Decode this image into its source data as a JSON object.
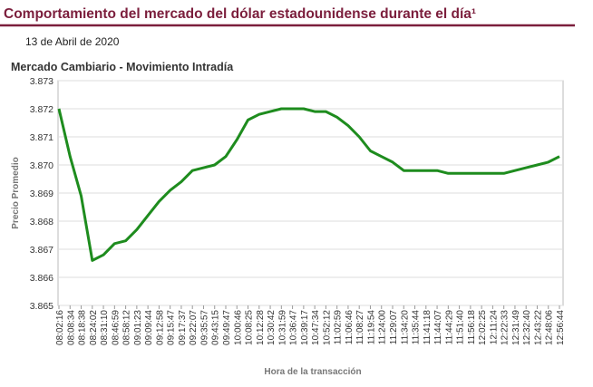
{
  "header": {
    "title": "Comportamiento del mercado del dólar estadounidense durante el día¹",
    "date": "13 de Abril de 2020"
  },
  "chart_data": {
    "type": "line",
    "title": "Mercado Cambiario - Movimiento Intradía",
    "x_label": "Hora de la transacción",
    "y_label": "Precio Promedio",
    "categories": [
      "08:02:16",
      "08:08:34",
      "08:18:38",
      "08:24:02",
      "08:31:10",
      "08:46:59",
      "08:58:12",
      "09:01:23",
      "09:09:44",
      "09:12:58",
      "09:15:47",
      "09:17:37",
      "09:22:07",
      "09:35:57",
      "09:43:15",
      "09:49:47",
      "10:00:46",
      "10:08:25",
      "10:12:28",
      "10:30:42",
      "10:31:59",
      "10:36:47",
      "10:39:17",
      "10:47:34",
      "10:52:12",
      "11:02:59",
      "11:06:46",
      "11:08:27",
      "11:19:54",
      "11:24:00",
      "11:29:07",
      "11:34:20",
      "11:35:44",
      "11:41:18",
      "11:44:07",
      "11:44:29",
      "11:51:40",
      "11:56:18",
      "12:02:25",
      "12:11:24",
      "12:22:33",
      "12:31:49",
      "12:32:40",
      "12:43:22",
      "12:48:06",
      "12:56:44"
    ],
    "series": [
      {
        "name": "Precio Promedio",
        "color": "#1e8c1e",
        "values": [
          3.872,
          3.8703,
          3.8689,
          3.8666,
          3.8668,
          3.8672,
          3.8673,
          3.8677,
          3.8682,
          3.8687,
          3.8691,
          3.8694,
          3.8698,
          3.8699,
          3.87,
          3.8703,
          3.8709,
          3.8716,
          3.8718,
          3.8719,
          3.872,
          3.872,
          3.872,
          3.8719,
          3.8719,
          3.8717,
          3.8714,
          3.871,
          3.8705,
          3.8703,
          3.8701,
          3.8698,
          3.8698,
          3.8698,
          3.8698,
          3.8697,
          3.8697,
          3.8697,
          3.8697,
          3.8697,
          3.8697,
          3.8698,
          3.8699,
          3.87,
          3.8701,
          3.8703
        ]
      }
    ],
    "ylim": [
      3.865,
      3.873
    ],
    "yticks": [
      3.865,
      3.866,
      3.867,
      3.868,
      3.869,
      {
        "value": 3.87,
        "label": "3.870"
      },
      3.871,
      3.872,
      3.873
    ],
    "grid": true
  }
}
